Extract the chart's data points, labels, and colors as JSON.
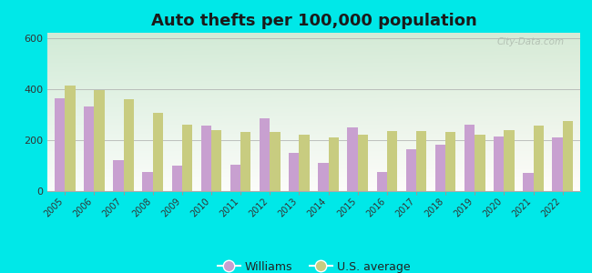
{
  "title": "Auto thefts per 100,000 population",
  "years": [
    2005,
    2006,
    2007,
    2008,
    2009,
    2010,
    2011,
    2012,
    2013,
    2014,
    2015,
    2016,
    2017,
    2018,
    2019,
    2020,
    2021,
    2022
  ],
  "williams": [
    365,
    330,
    120,
    75,
    100,
    255,
    105,
    285,
    150,
    110,
    250,
    75,
    165,
    180,
    260,
    215,
    70,
    210
  ],
  "us_avg": [
    415,
    395,
    360,
    305,
    260,
    240,
    230,
    230,
    220,
    210,
    220,
    235,
    235,
    230,
    220,
    240,
    255,
    275
  ],
  "williams_color": "#c8a0d0",
  "us_avg_color": "#c8cc80",
  "outer_bg": "#00e8e8",
  "plot_bg_top_left": "#d0ead8",
  "plot_bg_bottom_right": "#f0f8ec",
  "ylim": [
    0,
    620
  ],
  "yticks": [
    0,
    200,
    400,
    600
  ],
  "title_fontsize": 13,
  "legend_labels": [
    "Williams",
    "U.S. average"
  ],
  "watermark": "City-Data.com"
}
